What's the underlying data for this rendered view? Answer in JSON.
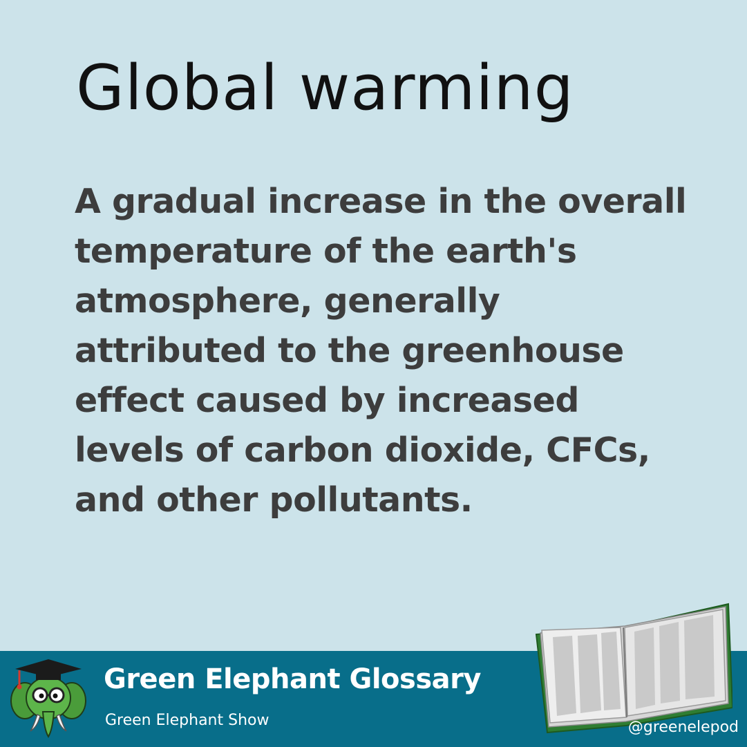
{
  "card": {
    "term": "Global warming",
    "definition": "A gradual increase in the overall temperature of the earth's atmosphere, generally attributed to the greenhouse effect caused by increased levels of carbon dioxide, CFCs, and other pollutants."
  },
  "footer": {
    "title": "Green Elephant Glossary",
    "subtitle": "Green Elephant Show",
    "handle": "@greenelepod"
  },
  "colors": {
    "background": "#cce3ea",
    "footer": "#086e8a",
    "mascot_green": "#5db54a"
  },
  "icons": {
    "mascot": "elephant-mascot-icon",
    "book": "open-book-icon"
  }
}
